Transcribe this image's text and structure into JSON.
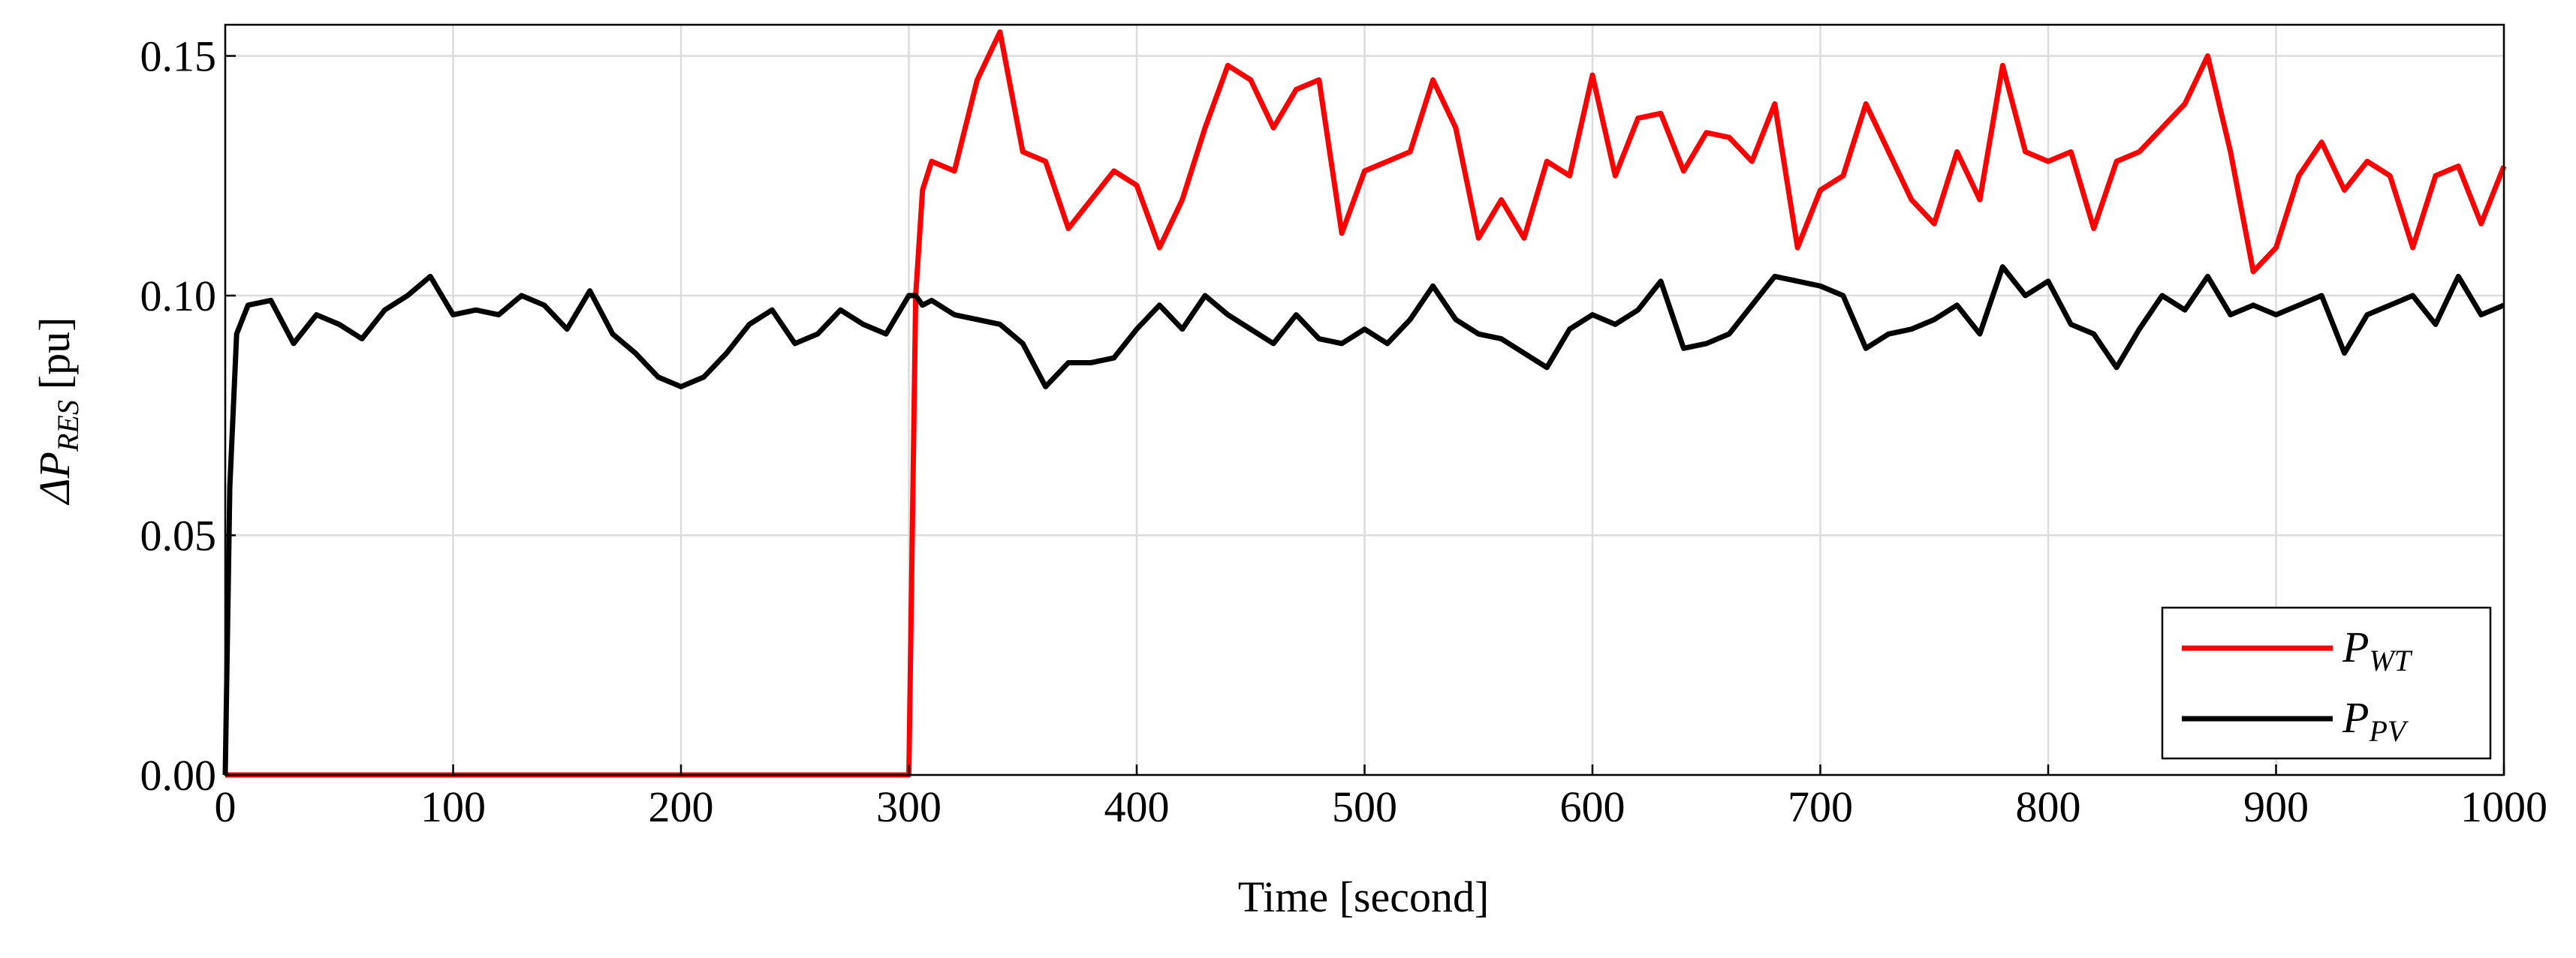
{
  "chart_data": {
    "type": "line",
    "x_label": "Time [second]",
    "y_label": {
      "main": "ΔP",
      "subscript": "RES",
      "unit": "[pu]"
    },
    "x": [
      0,
      2,
      5,
      10,
      20,
      30,
      40,
      50,
      60,
      70,
      80,
      90,
      100,
      110,
      120,
      130,
      140,
      150,
      160,
      170,
      180,
      190,
      200,
      210,
      220,
      230,
      240,
      250,
      260,
      270,
      280,
      290,
      300,
      303,
      306,
      310,
      320,
      330,
      340,
      350,
      360,
      370,
      380,
      390,
      400,
      410,
      420,
      430,
      440,
      450,
      460,
      470,
      480,
      490,
      500,
      510,
      520,
      530,
      540,
      550,
      560,
      570,
      580,
      590,
      600,
      610,
      620,
      630,
      640,
      650,
      660,
      670,
      680,
      690,
      700,
      710,
      720,
      730,
      740,
      750,
      760,
      770,
      780,
      790,
      800,
      810,
      820,
      830,
      840,
      850,
      860,
      870,
      880,
      890,
      900,
      910,
      920,
      930,
      940,
      950,
      960,
      970,
      980,
      990,
      1000
    ],
    "series": [
      {
        "name": "P",
        "subscript": "WT",
        "color": "#ff0000",
        "values": [
          0,
          0,
          0,
          0,
          0,
          0,
          0,
          0,
          0,
          0,
          0,
          0,
          0,
          0,
          0,
          0,
          0,
          0,
          0,
          0,
          0,
          0,
          0,
          0,
          0,
          0,
          0,
          0,
          0,
          0,
          0,
          0,
          0,
          0.1,
          0.122,
          0.128,
          0.126,
          0.145,
          0.155,
          0.13,
          0.128,
          0.114,
          0.12,
          0.126,
          0.123,
          0.11,
          0.12,
          0.135,
          0.148,
          0.145,
          0.135,
          0.143,
          0.145,
          0.113,
          0.126,
          0.128,
          0.13,
          0.145,
          0.135,
          0.112,
          0.12,
          0.112,
          0.128,
          0.125,
          0.146,
          0.125,
          0.137,
          0.138,
          0.126,
          0.134,
          0.133,
          0.128,
          0.14,
          0.11,
          0.122,
          0.125,
          0.14,
          0.13,
          0.12,
          0.115,
          0.13,
          0.12,
          0.148,
          0.13,
          0.128,
          0.13,
          0.114,
          0.128,
          0.13,
          0.135,
          0.14,
          0.15,
          0.13,
          0.105,
          0.11,
          0.125,
          0.132,
          0.122,
          0.128,
          0.125,
          0.11,
          0.125,
          0.127,
          0.115,
          0.127
        ]
      },
      {
        "name": "P",
        "subscript": "PV",
        "color": "#000000",
        "values": [
          0,
          0.06,
          0.092,
          0.098,
          0.099,
          0.09,
          0.096,
          0.094,
          0.091,
          0.097,
          0.1,
          0.104,
          0.096,
          0.097,
          0.096,
          0.1,
          0.098,
          0.093,
          0.101,
          0.092,
          0.088,
          0.083,
          0.081,
          0.083,
          0.088,
          0.094,
          0.097,
          0.09,
          0.092,
          0.097,
          0.094,
          0.092,
          0.1,
          0.1,
          0.098,
          0.099,
          0.096,
          0.095,
          0.094,
          0.09,
          0.081,
          0.086,
          0.086,
          0.087,
          0.093,
          0.098,
          0.093,
          0.1,
          0.096,
          0.093,
          0.09,
          0.096,
          0.091,
          0.09,
          0.093,
          0.09,
          0.095,
          0.102,
          0.095,
          0.092,
          0.091,
          0.088,
          0.085,
          0.093,
          0.096,
          0.094,
          0.097,
          0.103,
          0.089,
          0.09,
          0.092,
          0.098,
          0.104,
          0.103,
          0.102,
          0.1,
          0.089,
          0.092,
          0.093,
          0.095,
          0.098,
          0.092,
          0.106,
          0.1,
          0.103,
          0.094,
          0.092,
          0.085,
          0.093,
          0.1,
          0.097,
          0.104,
          0.096,
          0.098,
          0.096,
          0.098,
          0.1,
          0.088,
          0.096,
          0.098,
          0.1,
          0.094,
          0.104,
          0.096,
          0.098
        ]
      }
    ],
    "xlim": [
      0,
      1000
    ],
    "xticks": [
      0,
      100,
      200,
      300,
      400,
      500,
      600,
      700,
      800,
      900,
      1000
    ],
    "ylim": [
      0,
      0.1565
    ],
    "yticks": [
      {
        "value": 0,
        "label": "0.00"
      },
      {
        "value": 0.05,
        "label": "0.05"
      },
      {
        "value": 0.1,
        "label": "0.10"
      },
      {
        "value": 0.15,
        "label": "0.15"
      }
    ],
    "grid": true,
    "legend": "lower right"
  }
}
